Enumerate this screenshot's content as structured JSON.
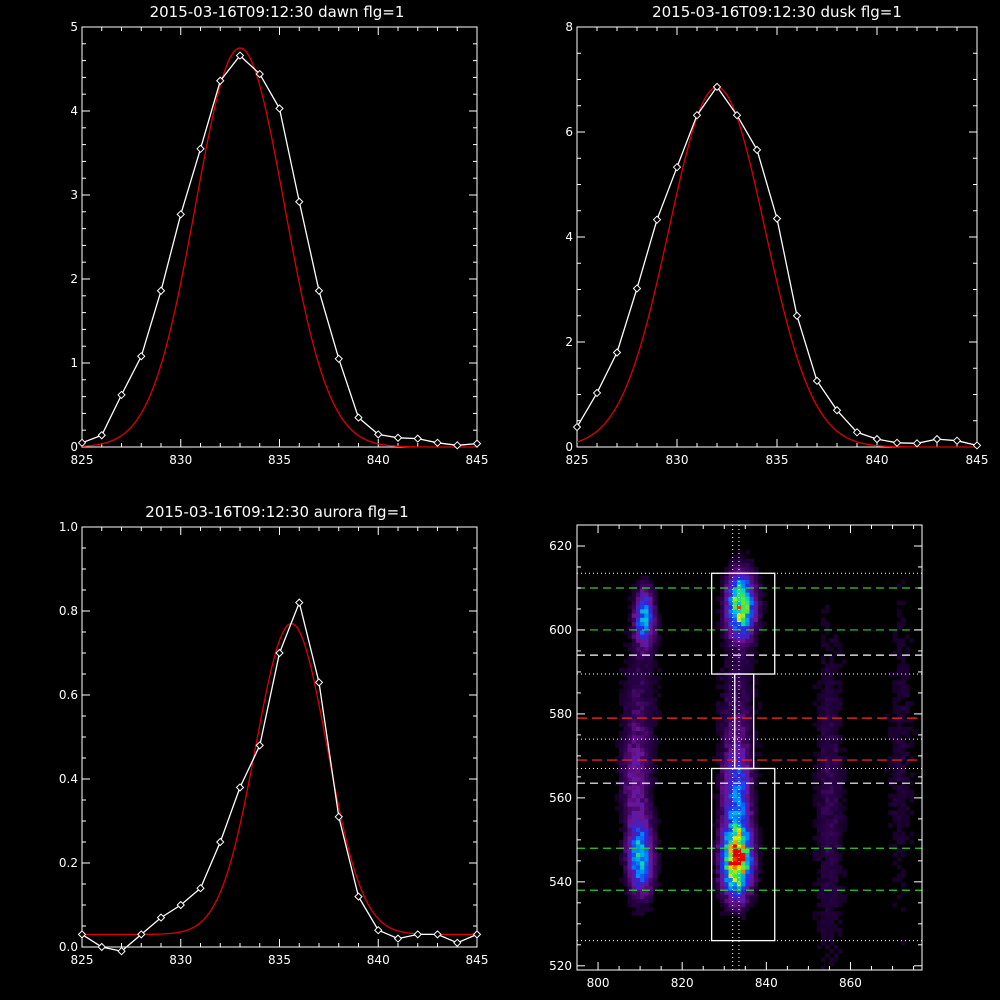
{
  "colors": {
    "background": "#000000",
    "axes": "#ffffff",
    "data": "#ffffff",
    "fit": "#dd0000",
    "green_line": "#33cc33",
    "white_line": "#ffffff",
    "red_line": "#dd2222"
  },
  "chart_data": [
    {
      "type": "line",
      "title": "2015-03-16T09:12:30 dawn flg=1",
      "xlim": [
        825,
        845
      ],
      "ylim": [
        0,
        5
      ],
      "xticks": [
        825,
        830,
        835,
        840,
        845
      ],
      "yticks": [
        0,
        1,
        2,
        3,
        4,
        5
      ],
      "x": [
        825,
        826,
        827,
        828,
        829,
        830,
        831,
        832,
        833,
        834,
        835,
        836,
        837,
        838,
        839,
        840,
        841,
        842,
        843,
        844,
        845
      ],
      "series": [
        {
          "role": "data",
          "marker": "diamond",
          "values": [
            0.05,
            0.14,
            0.62,
            1.08,
            1.86,
            2.77,
            3.55,
            4.36,
            4.66,
            4.44,
            4.03,
            2.92,
            1.86,
            1.05,
            0.35,
            0.15,
            0.11,
            0.1,
            0.05,
            0.02,
            0.04
          ]
        },
        {
          "role": "fit",
          "marker": "none",
          "fit": {
            "amp": 4.75,
            "center": 833.0,
            "sigma": 2.25,
            "base": 0.0
          }
        }
      ]
    },
    {
      "type": "line",
      "title": "2015-03-16T09:12:30 dusk flg=1",
      "xlim": [
        825,
        845
      ],
      "ylim": [
        0,
        8
      ],
      "xticks": [
        825,
        830,
        835,
        840,
        845
      ],
      "yticks": [
        0,
        2,
        4,
        6,
        8
      ],
      "x": [
        825,
        826,
        827,
        828,
        829,
        830,
        831,
        832,
        833,
        834,
        835,
        836,
        837,
        838,
        839,
        840,
        841,
        842,
        843,
        844,
        845
      ],
      "series": [
        {
          "role": "data",
          "marker": "diamond",
          "values": [
            0.38,
            1.03,
            1.8,
            3.02,
            4.33,
            5.33,
            6.32,
            6.86,
            6.32,
            5.66,
            4.35,
            2.5,
            1.26,
            0.7,
            0.28,
            0.15,
            0.08,
            0.07,
            0.15,
            0.12,
            0.03
          ]
        },
        {
          "role": "fit",
          "marker": "none",
          "fit": {
            "amp": 6.85,
            "center": 832.0,
            "sigma": 2.4,
            "base": 0.0
          }
        }
      ]
    },
    {
      "type": "line",
      "title": "2015-03-16T09:12:30 aurora flg=1",
      "xlim": [
        825,
        845
      ],
      "ylim": [
        0,
        1.0
      ],
      "xticks": [
        825,
        830,
        835,
        840,
        845
      ],
      "yticks": [
        0.0,
        0.2,
        0.4,
        0.6,
        0.8,
        1.0
      ],
      "x": [
        825,
        826,
        827,
        828,
        829,
        830,
        831,
        832,
        833,
        834,
        835,
        836,
        837,
        838,
        839,
        840,
        841,
        842,
        843,
        844,
        845
      ],
      "series": [
        {
          "role": "data",
          "marker": "diamond",
          "values": [
            0.03,
            0.0,
            -0.01,
            0.03,
            0.07,
            0.1,
            0.14,
            0.25,
            0.38,
            0.48,
            0.7,
            0.82,
            0.63,
            0.31,
            0.12,
            0.04,
            0.02,
            0.03,
            0.03,
            0.01,
            0.03
          ]
        },
        {
          "role": "fit",
          "marker": "none",
          "fit": {
            "amp": 0.74,
            "center": 835.6,
            "sigma": 1.8,
            "base": 0.03
          }
        }
      ]
    },
    {
      "type": "heatmap",
      "title": "",
      "xlim": [
        795,
        877
      ],
      "ylim": [
        519,
        625
      ],
      "xticks": [
        800,
        820,
        840,
        860
      ],
      "yticks": [
        520,
        540,
        560,
        580,
        600,
        620
      ],
      "blobs": [
        {
          "x": 811,
          "y": 603,
          "sx": 1.6,
          "sy": 4.5,
          "amp": 0.5
        },
        {
          "x": 810,
          "y": 546,
          "sx": 2.0,
          "sy": 6.0,
          "amp": 0.55
        },
        {
          "x": 809,
          "y": 565,
          "sx": 2.5,
          "sy": 9.0,
          "amp": 0.2
        },
        {
          "x": 810,
          "y": 585,
          "sx": 3.0,
          "sy": 10.0,
          "amp": 0.09
        },
        {
          "x": 834,
          "y": 606,
          "sx": 2.2,
          "sy": 5.0,
          "amp": 0.8
        },
        {
          "x": 833,
          "y": 545,
          "sx": 2.3,
          "sy": 5.5,
          "amp": 1.0
        },
        {
          "x": 833,
          "y": 560,
          "sx": 2.2,
          "sy": 8.0,
          "amp": 0.42
        },
        {
          "x": 833,
          "y": 580,
          "sx": 3.0,
          "sy": 12.0,
          "amp": 0.12
        },
        {
          "x": 855,
          "y": 560,
          "sx": 2.5,
          "sy": 30.0,
          "amp": 0.1
        },
        {
          "x": 872,
          "y": 570,
          "sx": 2.5,
          "sy": 30.0,
          "amp": 0.06
        },
        {
          "x": 790,
          "y": 570,
          "sx": 3.0,
          "sy": 35.0,
          "amp": 0.06
        }
      ],
      "lines": {
        "green_dashed_y": [
          610,
          600,
          548,
          538
        ],
        "white_dashed_y": [
          594,
          563.5
        ],
        "red_dashed_y": [
          579,
          569
        ],
        "dotted_y": [
          613.5,
          589.5,
          574,
          567,
          526
        ],
        "dotted_x": [
          832,
          833.5
        ],
        "boxes": [
          {
            "x0": 827,
            "x1": 842,
            "y0": 589.5,
            "y1": 613.5
          },
          {
            "x0": 827,
            "x1": 842,
            "y0": 526,
            "y1": 567
          },
          {
            "x0": 832.5,
            "x1": 837,
            "y0": 567,
            "y1": 589.5
          }
        ]
      }
    }
  ]
}
